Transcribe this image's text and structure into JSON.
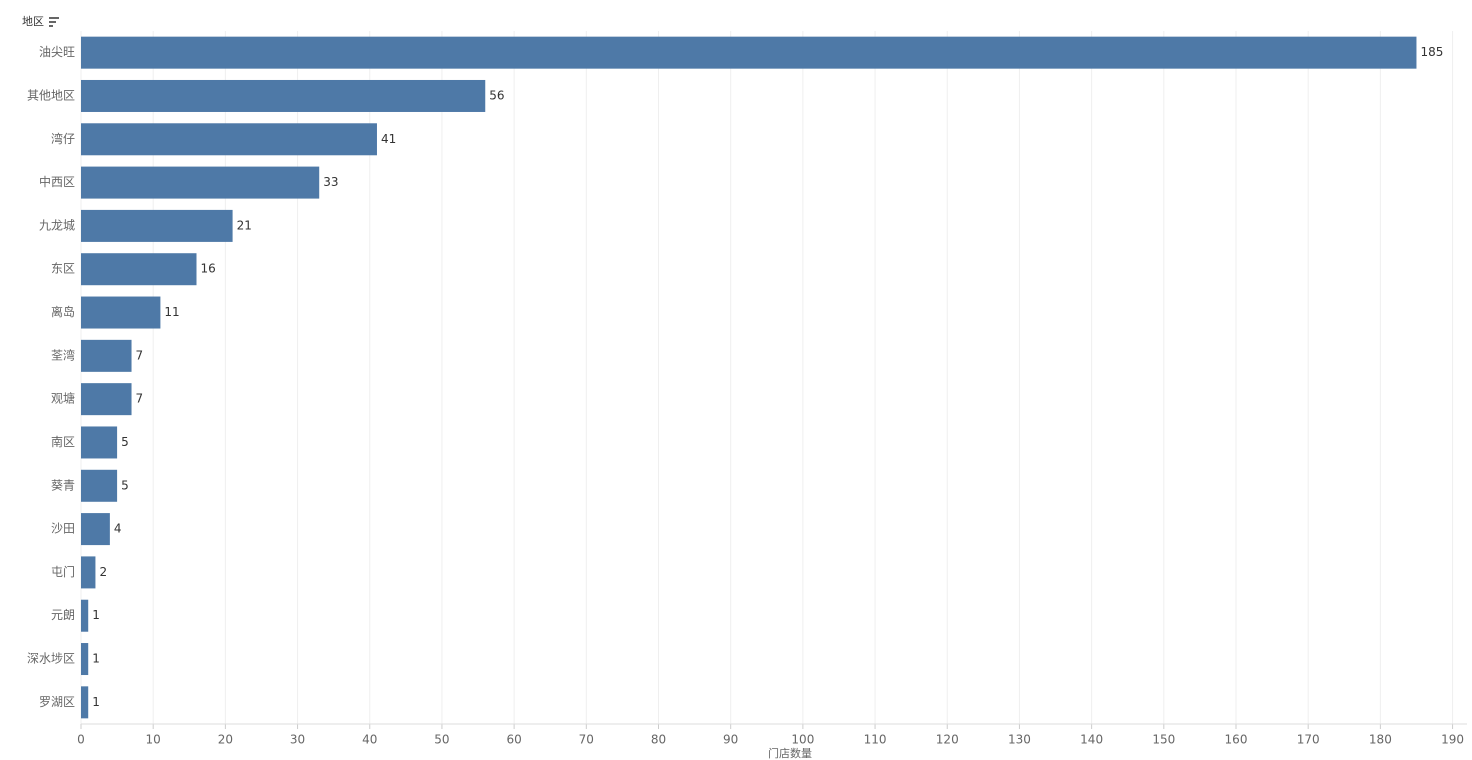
{
  "chart_data": {
    "type": "bar",
    "orientation": "horizontal",
    "y_axis_label": "地区",
    "x_axis_label": "门店数量",
    "categories": [
      "油尖旺",
      "其他地区",
      "湾仔",
      "中西区",
      "九龙城",
      "东区",
      "离岛",
      "荃湾",
      "观塘",
      "南区",
      "葵青",
      "沙田",
      "屯门",
      "元朗",
      "深水埗区",
      "罗湖区"
    ],
    "values": [
      185,
      56,
      41,
      33,
      21,
      16,
      11,
      7,
      7,
      5,
      5,
      4,
      2,
      1,
      1,
      1
    ],
    "color": "#4e79a7",
    "xlim": [
      0,
      192
    ],
    "xticks": [
      0,
      10,
      20,
      30,
      40,
      50,
      60,
      70,
      80,
      90,
      100,
      110,
      120,
      130,
      140,
      150,
      160,
      170,
      180,
      190
    ],
    "grid": true
  }
}
